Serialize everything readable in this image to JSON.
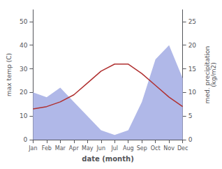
{
  "chart_data": {
    "type": "line",
    "categories": [
      "Jan",
      "Feb",
      "Mar",
      "Apr",
      "May",
      "Jun",
      "Jul",
      "Aug",
      "Sep",
      "Oct",
      "Nov",
      "Dec"
    ],
    "series": [
      {
        "type": "area",
        "axis": "y2",
        "color": "#b0b8e8",
        "values": [
          10,
          9,
          11,
          8,
          5,
          2,
          1,
          2,
          8,
          17,
          20,
          13
        ]
      },
      {
        "type": "line",
        "axis": "y",
        "color": "#b03030",
        "values": [
          13,
          14,
          16,
          19,
          24,
          29,
          32,
          32,
          28,
          23,
          18,
          14
        ]
      }
    ],
    "xlabel": "date (month)",
    "ylabel": "max temp (C)",
    "y2label": "med. precipitation\n(kg/m2)",
    "ylim": [
      0,
      55
    ],
    "yticks": [
      0,
      10,
      20,
      30,
      40,
      50
    ],
    "y2lim": [
      0,
      27.5
    ],
    "y2ticks": [
      0,
      5,
      10,
      15,
      20,
      25
    ],
    "grid": false
  }
}
